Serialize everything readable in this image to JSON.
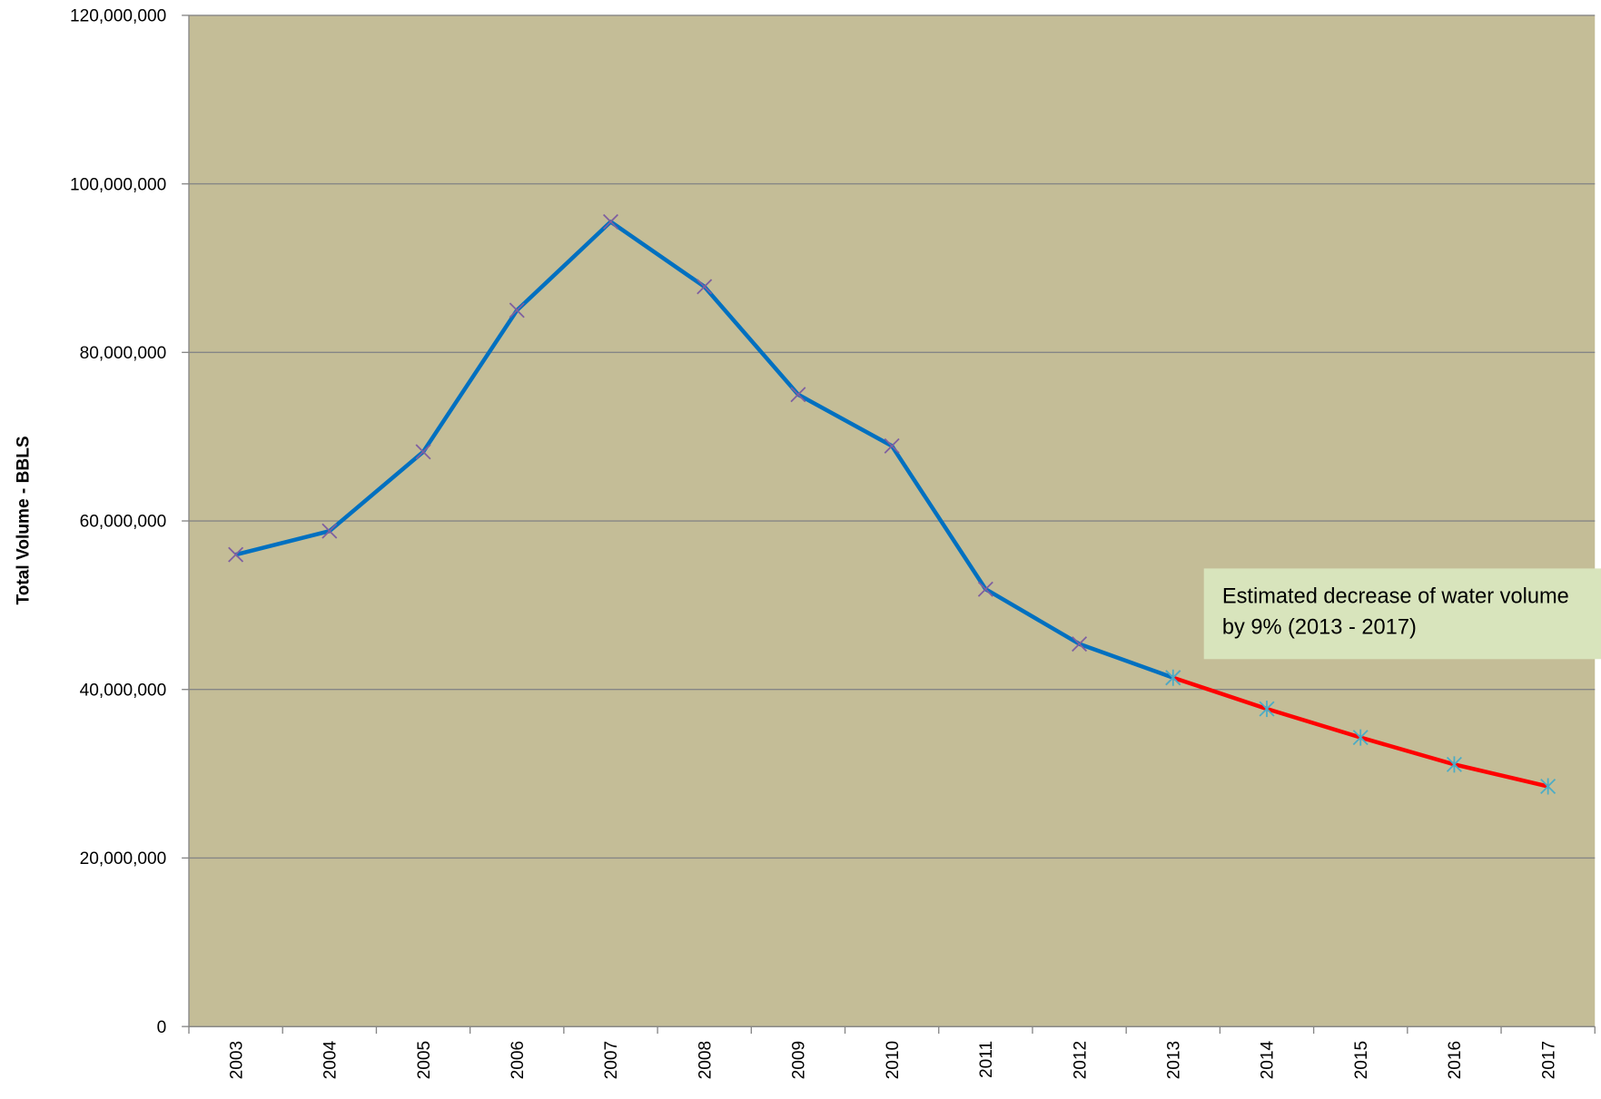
{
  "chart_data": {
    "type": "line",
    "y_label": "Total Volume - BBLS",
    "annotation": "Estimated decrease of water volume by 9% (2013 - 2017)",
    "categories": [
      "2003",
      "2004",
      "2005",
      "2006",
      "2007",
      "2008",
      "2009",
      "2010",
      "2011",
      "2012",
      "2013",
      "2014",
      "2015",
      "2016",
      "2017"
    ],
    "series": [
      {
        "color": "#0070c0",
        "marker_color": "#7f5fa0",
        "marker": "x",
        "values": [
          56000000,
          58800000,
          68200000,
          85000000,
          95500000,
          87800000,
          75000000,
          68900000,
          51900000,
          45400000,
          41400000,
          null,
          null,
          null,
          null
        ]
      },
      {
        "color": "#ff0000",
        "marker_color": "#4bacc6",
        "marker": "star",
        "values": [
          null,
          null,
          null,
          null,
          null,
          null,
          null,
          null,
          null,
          null,
          41400000,
          37700000,
          34300000,
          31100000,
          28500000
        ]
      }
    ],
    "ylim": [
      0,
      120000000
    ],
    "yticks": [
      0,
      {
        "value": 20000000,
        "label": "20,000,000"
      },
      {
        "value": 40000000,
        "label": "40,000,000"
      },
      {
        "value": 60000000,
        "label": "60,000,000"
      },
      {
        "value": 80000000,
        "label": "80,000,000"
      },
      {
        "value": 100000000,
        "label": "100,000,000"
      },
      {
        "value": 120000000,
        "label": "120,000,000"
      }
    ],
    "grid": true,
    "background": "#c4bd97"
  }
}
